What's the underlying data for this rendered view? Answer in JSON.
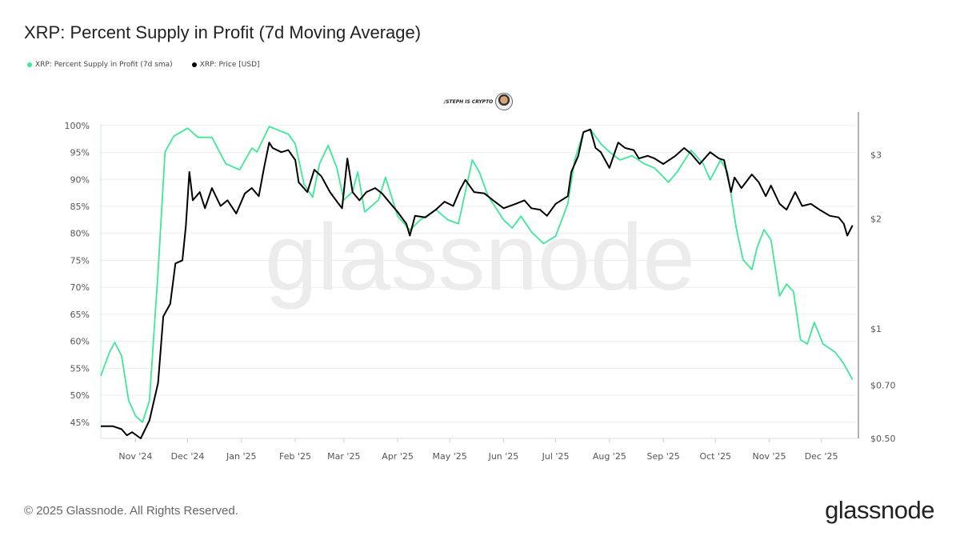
{
  "title": "XRP: Percent Supply in Profit (7d Moving Average)",
  "legend": [
    {
      "label": "XRP: Percent Supply in Profit (7d sma)",
      "color": "#3ee896"
    },
    {
      "label": "XRP: Price [USD]",
      "color": "#000000"
    }
  ],
  "badge": "/STEPH IS CRYPTO",
  "watermark": "glassnode",
  "footer": "© 2025 Glassnode. All Rights Reserved.",
  "logo": "glassnode",
  "chart_data": {
    "type": "line",
    "title": "XRP: Percent Supply in Profit (7d Moving Average)",
    "grid": true,
    "x_range": [
      "2024-10-12",
      "2025-12-21"
    ],
    "x_ticks": [
      {
        "date": "2024-11-01",
        "label": "Nov '24"
      },
      {
        "date": "2024-12-01",
        "label": "Dec '24"
      },
      {
        "date": "2025-01-01",
        "label": "Jan '25"
      },
      {
        "date": "2025-02-01",
        "label": "Feb '25"
      },
      {
        "date": "2025-03-01",
        "label": "Mar '25"
      },
      {
        "date": "2025-04-01",
        "label": "Apr '25"
      },
      {
        "date": "2025-05-01",
        "label": "May '25"
      },
      {
        "date": "2025-06-01",
        "label": "Jun '25"
      },
      {
        "date": "2025-07-01",
        "label": "Jul '25"
      },
      {
        "date": "2025-08-01",
        "label": "Aug '25"
      },
      {
        "date": "2025-09-01",
        "label": "Sep '25"
      },
      {
        "date": "2025-10-01",
        "label": "Oct '25"
      },
      {
        "date": "2025-11-01",
        "label": "Nov '25"
      },
      {
        "date": "2025-12-01",
        "label": "Dec '25"
      }
    ],
    "y_left": {
      "scale": "linear",
      "range": [
        42,
        102.5
      ],
      "ticks": [
        {
          "v": 100,
          "label": "100%"
        },
        {
          "v": 95,
          "label": "95%"
        },
        {
          "v": 90,
          "label": "90%"
        },
        {
          "v": 85,
          "label": "85%"
        },
        {
          "v": 80,
          "label": "80%"
        },
        {
          "v": 75,
          "label": "75%"
        },
        {
          "v": 70,
          "label": "70%"
        },
        {
          "v": 65,
          "label": "65%"
        },
        {
          "v": 60,
          "label": "60%"
        },
        {
          "v": 55,
          "label": "55%"
        },
        {
          "v": 50,
          "label": "50%"
        },
        {
          "v": 45,
          "label": "45%"
        }
      ]
    },
    "y_right": {
      "scale": "log",
      "range": [
        0.5,
        3.93
      ],
      "ticks": [
        {
          "v": 3,
          "label": "$3"
        },
        {
          "v": 2,
          "label": "$2"
        },
        {
          "v": 1,
          "label": "$1"
        },
        {
          "v": 0.7,
          "label": "$0.70"
        },
        {
          "v": 0.5,
          "label": "$0.50"
        }
      ]
    },
    "series": [
      {
        "name": "XRP: Percent Supply in Profit (7d sma)",
        "axis": "left",
        "color": "#3ee896",
        "points": [
          [
            "2024-10-12",
            53.6
          ],
          [
            "2024-10-17",
            58
          ],
          [
            "2024-10-20",
            59.8
          ],
          [
            "2024-10-24",
            57.3
          ],
          [
            "2024-10-28",
            49.1
          ],
          [
            "2024-11-01",
            46.2
          ],
          [
            "2024-11-05",
            45
          ],
          [
            "2024-11-09",
            49
          ],
          [
            "2024-11-14",
            72.9
          ],
          [
            "2024-11-18",
            95.1
          ],
          [
            "2024-11-23",
            98
          ],
          [
            "2024-12-01",
            99.5
          ],
          [
            "2024-12-07",
            97.8
          ],
          [
            "2024-12-15",
            97.8
          ],
          [
            "2024-12-23",
            92.9
          ],
          [
            "2024-12-31",
            91.8
          ],
          [
            "2025-01-07",
            95.8
          ],
          [
            "2025-01-10",
            95.1
          ],
          [
            "2025-01-17",
            99.8
          ],
          [
            "2025-01-28",
            98.4
          ],
          [
            "2025-02-01",
            96.6
          ],
          [
            "2025-02-06",
            89.2
          ],
          [
            "2025-02-11",
            86.7
          ],
          [
            "2025-02-15",
            92.9
          ],
          [
            "2025-02-20",
            96.3
          ],
          [
            "2025-02-25",
            92.1
          ],
          [
            "2025-03-01",
            86.2
          ],
          [
            "2025-03-06",
            87.7
          ],
          [
            "2025-03-09",
            91.4
          ],
          [
            "2025-03-13",
            84
          ],
          [
            "2025-03-21",
            86.2
          ],
          [
            "2025-03-25",
            90.4
          ],
          [
            "2025-04-01",
            83.2
          ],
          [
            "2025-04-08",
            80.6
          ],
          [
            "2025-04-14",
            82.5
          ],
          [
            "2025-04-23",
            84.4
          ],
          [
            "2025-04-30",
            82.5
          ],
          [
            "2025-05-06",
            81.8
          ],
          [
            "2025-05-14",
            93.6
          ],
          [
            "2025-05-18",
            91.4
          ],
          [
            "2025-05-23",
            87
          ],
          [
            "2025-06-01",
            82.5
          ],
          [
            "2025-06-06",
            81
          ],
          [
            "2025-06-11",
            83.2
          ],
          [
            "2025-06-17",
            80.3
          ],
          [
            "2025-06-24",
            78.1
          ],
          [
            "2025-07-01",
            79.5
          ],
          [
            "2025-07-08",
            85.5
          ],
          [
            "2025-07-12",
            93.6
          ],
          [
            "2025-07-17",
            98.8
          ],
          [
            "2025-07-21",
            99.3
          ],
          [
            "2025-07-27",
            96.6
          ],
          [
            "2025-08-01",
            95.1
          ],
          [
            "2025-08-07",
            93.6
          ],
          [
            "2025-08-14",
            94.4
          ],
          [
            "2025-08-21",
            92.9
          ],
          [
            "2025-08-27",
            92.1
          ],
          [
            "2025-09-04",
            89.5
          ],
          [
            "2025-09-09",
            91.4
          ],
          [
            "2025-09-17",
            95.4
          ],
          [
            "2025-09-24",
            92.9
          ],
          [
            "2025-09-28",
            89.9
          ],
          [
            "2025-10-04",
            93.6
          ],
          [
            "2025-10-08",
            91.4
          ],
          [
            "2025-10-13",
            81
          ],
          [
            "2025-10-17",
            75.1
          ],
          [
            "2025-10-22",
            73.3
          ],
          [
            "2025-10-25",
            77.3
          ],
          [
            "2025-10-29",
            80.7
          ],
          [
            "2025-11-02",
            78.8
          ],
          [
            "2025-11-07",
            68.4
          ],
          [
            "2025-11-11",
            70.6
          ],
          [
            "2025-11-15",
            69.2
          ],
          [
            "2025-11-19",
            60.3
          ],
          [
            "2025-11-23",
            59.5
          ],
          [
            "2025-11-27",
            63.5
          ],
          [
            "2025-12-02",
            59.5
          ],
          [
            "2025-12-09",
            58
          ],
          [
            "2025-12-14",
            55.8
          ],
          [
            "2025-12-19",
            52.9
          ]
        ]
      },
      {
        "name": "XRP: Price [USD]",
        "axis": "right",
        "color": "#000000",
        "points": [
          [
            "2024-10-12",
            0.54
          ],
          [
            "2024-10-19",
            0.54
          ],
          [
            "2024-10-24",
            0.53
          ],
          [
            "2024-10-27",
            0.51
          ],
          [
            "2024-10-30",
            0.52
          ],
          [
            "2024-11-04",
            0.5
          ],
          [
            "2024-11-09",
            0.56
          ],
          [
            "2024-11-14",
            0.71
          ],
          [
            "2024-11-17",
            1.08
          ],
          [
            "2024-11-21",
            1.17
          ],
          [
            "2024-11-24",
            1.51
          ],
          [
            "2024-11-28",
            1.54
          ],
          [
            "2024-11-30",
            1.91
          ],
          [
            "2024-12-02",
            2.69
          ],
          [
            "2024-12-04",
            2.25
          ],
          [
            "2024-12-08",
            2.37
          ],
          [
            "2024-12-11",
            2.14
          ],
          [
            "2024-12-15",
            2.43
          ],
          [
            "2024-12-20",
            2.17
          ],
          [
            "2024-12-24",
            2.25
          ],
          [
            "2024-12-29",
            2.07
          ],
          [
            "2025-01-03",
            2.35
          ],
          [
            "2025-01-07",
            2.43
          ],
          [
            "2025-01-11",
            2.31
          ],
          [
            "2025-01-14",
            2.76
          ],
          [
            "2025-01-17",
            3.24
          ],
          [
            "2025-01-19",
            3.13
          ],
          [
            "2025-01-24",
            3.05
          ],
          [
            "2025-01-28",
            3.09
          ],
          [
            "2025-02-01",
            2.9
          ],
          [
            "2025-02-03",
            2.52
          ],
          [
            "2025-02-08",
            2.37
          ],
          [
            "2025-02-12",
            2.73
          ],
          [
            "2025-02-16",
            2.62
          ],
          [
            "2025-02-21",
            2.37
          ],
          [
            "2025-02-26",
            2.2
          ],
          [
            "2025-02-28",
            2.14
          ],
          [
            "2025-03-03",
            2.93
          ],
          [
            "2025-03-06",
            2.37
          ],
          [
            "2025-03-10",
            2.25
          ],
          [
            "2025-03-14",
            2.37
          ],
          [
            "2025-03-19",
            2.43
          ],
          [
            "2025-03-23",
            2.35
          ],
          [
            "2025-03-28",
            2.2
          ],
          [
            "2025-04-01",
            2.09
          ],
          [
            "2025-04-06",
            1.94
          ],
          [
            "2025-04-08",
            1.8
          ],
          [
            "2025-04-11",
            2.04
          ],
          [
            "2025-04-17",
            2.02
          ],
          [
            "2025-04-23",
            2.12
          ],
          [
            "2025-04-28",
            2.23
          ],
          [
            "2025-05-03",
            2.17
          ],
          [
            "2025-05-07",
            2.41
          ],
          [
            "2025-05-10",
            2.56
          ],
          [
            "2025-05-15",
            2.37
          ],
          [
            "2025-05-21",
            2.35
          ],
          [
            "2025-05-27",
            2.23
          ],
          [
            "2025-06-01",
            2.14
          ],
          [
            "2025-06-08",
            2.2
          ],
          [
            "2025-06-13",
            2.25
          ],
          [
            "2025-06-17",
            2.14
          ],
          [
            "2025-06-22",
            2.12
          ],
          [
            "2025-06-26",
            2.04
          ],
          [
            "2025-07-01",
            2.2
          ],
          [
            "2025-07-08",
            2.31
          ],
          [
            "2025-07-10",
            2.69
          ],
          [
            "2025-07-14",
            2.98
          ],
          [
            "2025-07-17",
            3.46
          ],
          [
            "2025-07-21",
            3.52
          ],
          [
            "2025-07-24",
            3.13
          ],
          [
            "2025-07-27",
            3.05
          ],
          [
            "2025-08-01",
            2.76
          ],
          [
            "2025-08-06",
            3.24
          ],
          [
            "2025-08-10",
            3.13
          ],
          [
            "2025-08-15",
            3.09
          ],
          [
            "2025-08-18",
            2.93
          ],
          [
            "2025-08-23",
            2.98
          ],
          [
            "2025-08-27",
            2.93
          ],
          [
            "2025-09-01",
            2.83
          ],
          [
            "2025-09-08",
            2.98
          ],
          [
            "2025-09-13",
            3.13
          ],
          [
            "2025-09-17",
            3.02
          ],
          [
            "2025-09-22",
            2.83
          ],
          [
            "2025-09-28",
            3.05
          ],
          [
            "2025-10-03",
            2.93
          ],
          [
            "2025-10-06",
            2.9
          ],
          [
            "2025-10-10",
            2.37
          ],
          [
            "2025-10-12",
            2.6
          ],
          [
            "2025-10-16",
            2.43
          ],
          [
            "2025-10-22",
            2.65
          ],
          [
            "2025-10-26",
            2.52
          ],
          [
            "2025-10-30",
            2.31
          ],
          [
            "2025-11-02",
            2.47
          ],
          [
            "2025-11-07",
            2.2
          ],
          [
            "2025-11-11",
            2.12
          ],
          [
            "2025-11-16",
            2.37
          ],
          [
            "2025-11-20",
            2.17
          ],
          [
            "2025-11-25",
            2.2
          ],
          [
            "2025-11-30",
            2.12
          ],
          [
            "2025-12-06",
            2.04
          ],
          [
            "2025-12-11",
            2.02
          ],
          [
            "2025-12-14",
            1.94
          ],
          [
            "2025-12-16",
            1.8
          ],
          [
            "2025-12-19",
            1.92
          ]
        ]
      }
    ]
  }
}
